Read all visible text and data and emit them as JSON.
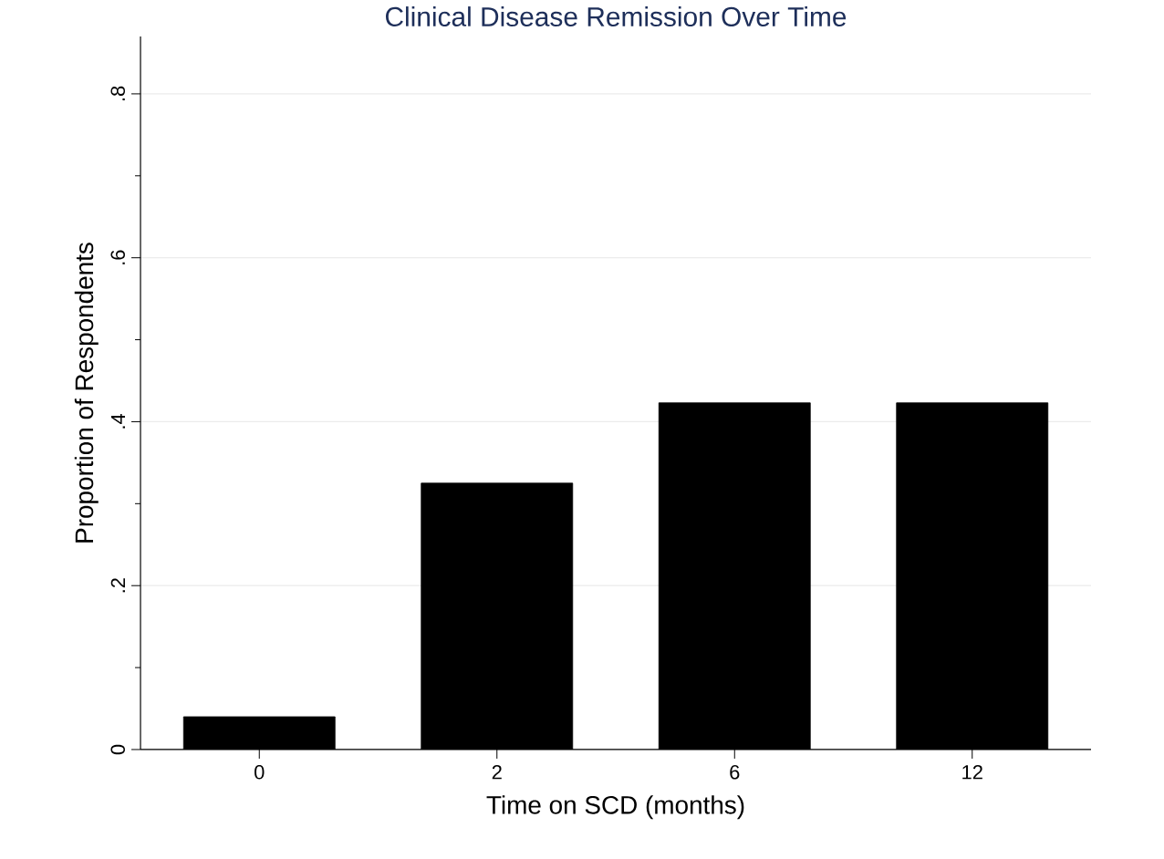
{
  "chart_data": {
    "type": "bar",
    "title": "Clinical Disease Remission Over Time",
    "xlabel": "Time on SCD (months)",
    "ylabel": "Proportion of Respondents",
    "categories": [
      "0",
      "2",
      "6",
      "12"
    ],
    "values": [
      0.04,
      0.325,
      0.423,
      0.423
    ],
    "color": "#000000",
    "ylim": [
      0,
      0.87
    ],
    "yticks": [
      0,
      {
        "value": 0.1,
        "label": null
      },
      {
        "value": 0.2,
        "label": ".2"
      },
      {
        "value": 0.3,
        "label": null
      },
      {
        "value": 0.4,
        "label": ".4"
      },
      {
        "value": 0.5,
        "label": null
      },
      {
        "value": 0.6,
        "label": ".6"
      },
      {
        "value": 0.7,
        "label": null
      },
      {
        "value": 0.8,
        "label": ".8"
      }
    ],
    "grid": "y"
  }
}
